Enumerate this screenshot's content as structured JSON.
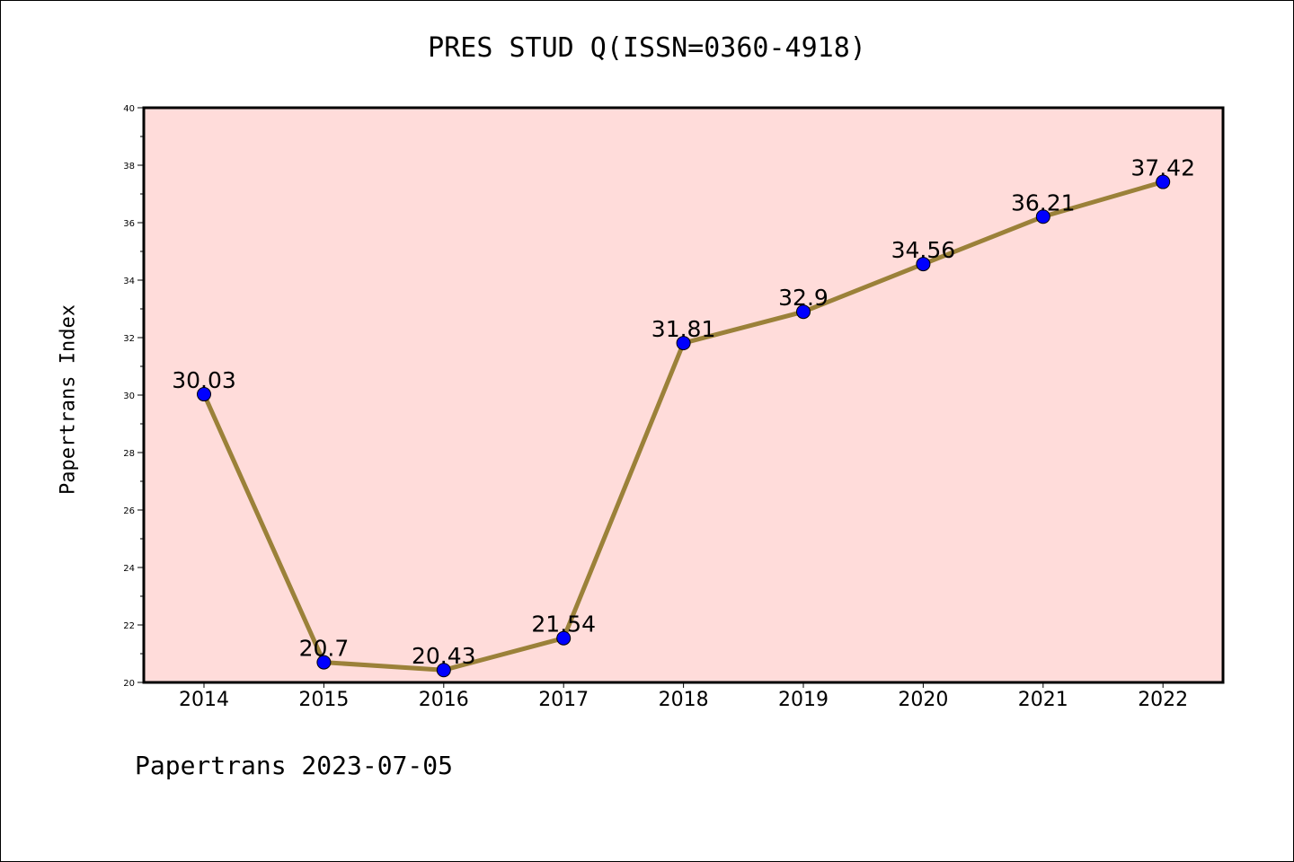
{
  "chart_data": {
    "type": "line",
    "title": "PRES STUD Q(ISSN=0360-4918)",
    "xlabel": "",
    "ylabel": "Papertrans Index",
    "footer": "Papertrans 2023-07-05",
    "x": [
      "2014",
      "2015",
      "2016",
      "2017",
      "2018",
      "2019",
      "2020",
      "2021",
      "2022"
    ],
    "series": [
      {
        "values": [
          30.03,
          20.7,
          20.43,
          21.54,
          31.81,
          32.9,
          34.56,
          36.21,
          37.42
        ],
        "labels": [
          "30.03",
          "20.7",
          "20.43",
          "21.54",
          "31.81",
          "32.9",
          "34.56",
          "36.21",
          "37.42"
        ]
      }
    ],
    "yticks": [
      "20",
      "22",
      "24",
      "26",
      "28",
      "30",
      "32",
      "34",
      "36",
      "38",
      "40"
    ],
    "ylim": [
      20,
      40
    ],
    "grid": false,
    "colors": {
      "plot_background": "#ffdcda",
      "line": "#9b8139",
      "marker": "#0000ff"
    }
  }
}
